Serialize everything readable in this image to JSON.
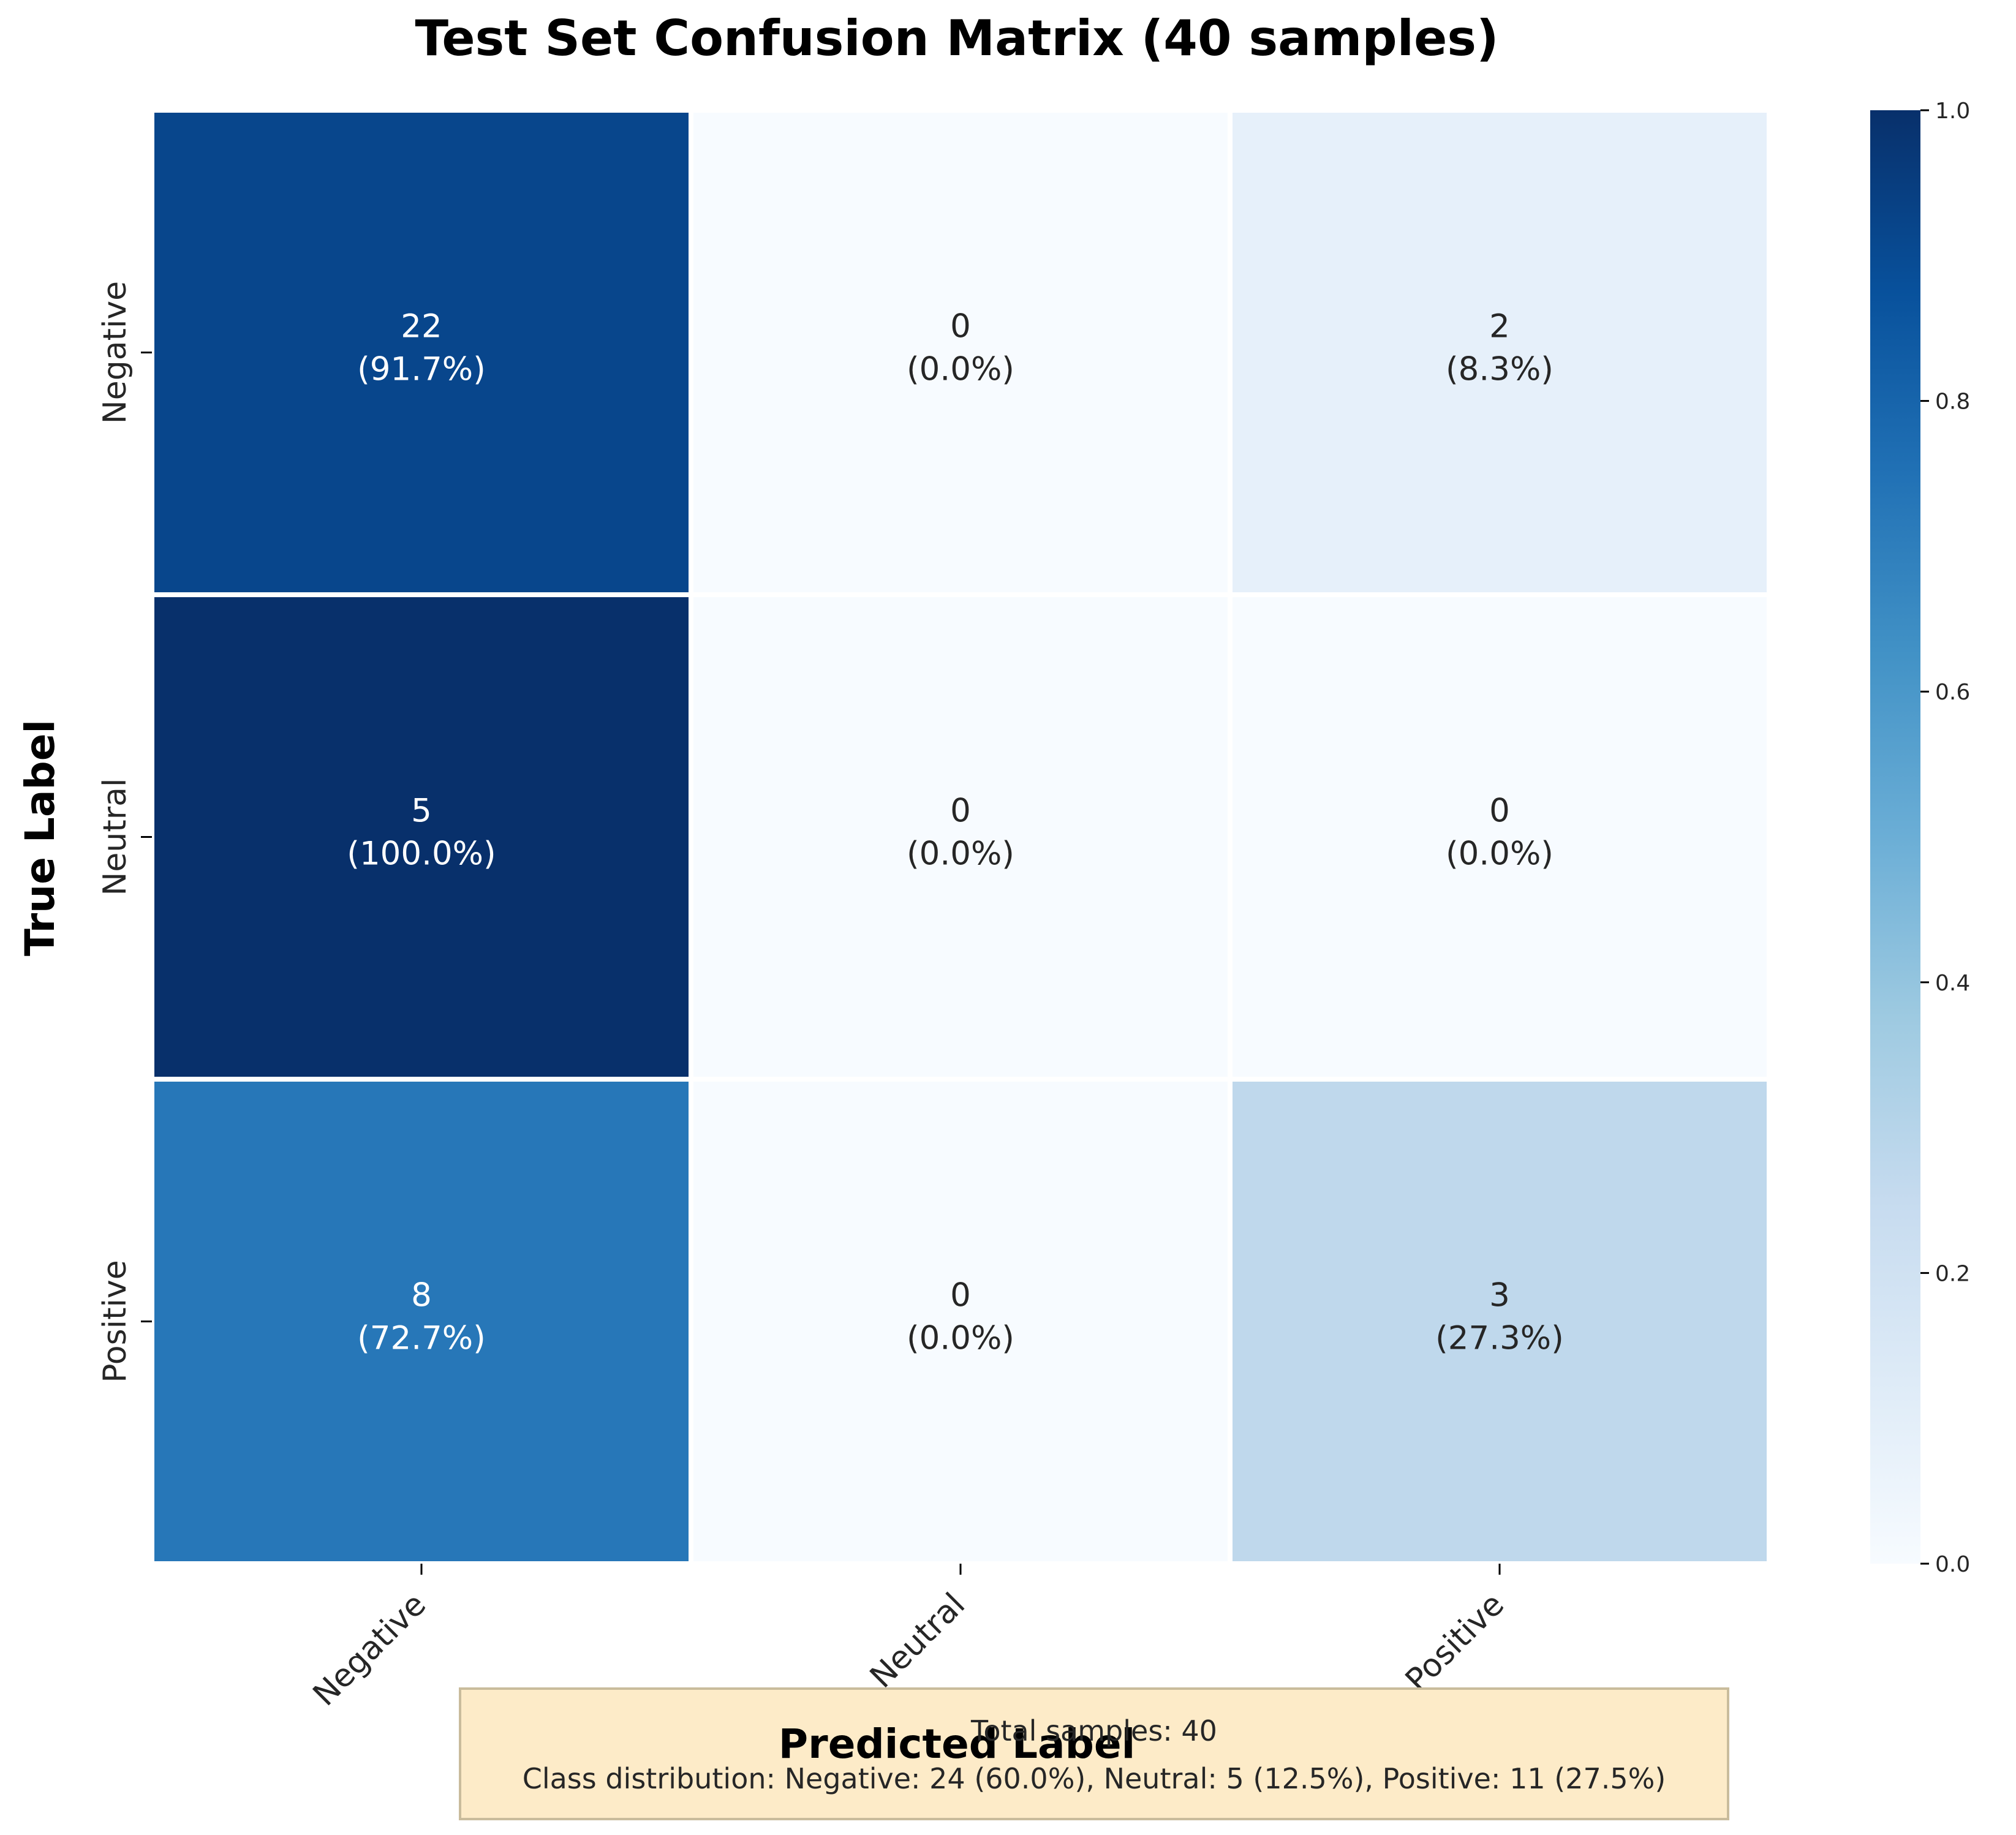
{
  "chart_data": {
    "type": "heatmap",
    "title": "Test Set Confusion Matrix (40 samples)",
    "xlabel": "Predicted Label",
    "ylabel": "True Label",
    "x_categories": [
      "Negative",
      "Neutral",
      "Positive"
    ],
    "y_categories": [
      "Negative",
      "Neutral",
      "Positive"
    ],
    "counts": [
      [
        22,
        0,
        2
      ],
      [
        5,
        0,
        0
      ],
      [
        8,
        0,
        3
      ]
    ],
    "normalized": [
      [
        0.917,
        0.0,
        0.083
      ],
      [
        1.0,
        0.0,
        0.0
      ],
      [
        0.727,
        0.0,
        0.273
      ]
    ],
    "cell_percent_labels": [
      [
        "(91.7%)",
        "(0.0%)",
        "(8.3%)"
      ],
      [
        "(100.0%)",
        "(0.0%)",
        "(0.0%)"
      ],
      [
        "(72.7%)",
        "(0.0%)",
        "(27.3%)"
      ]
    ],
    "colormap": "Blues",
    "colorbar": {
      "range": [
        0.0,
        1.0
      ],
      "ticks": [
        "0.0",
        "0.2",
        "0.4",
        "0.6",
        "0.8",
        "1.0"
      ]
    },
    "annotation": {
      "line1": "Total samples: 40",
      "line2": "Class distribution: Negative: 24 (60.0%), Neutral: 5 (12.5%), Positive: 11 (27.5%)",
      "background": "#fdebc8",
      "border": "#c9bc9c"
    }
  }
}
